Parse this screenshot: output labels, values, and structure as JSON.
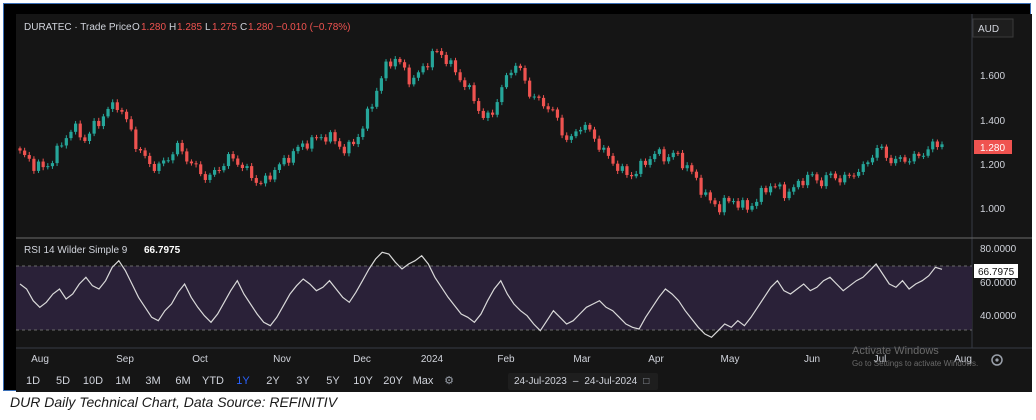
{
  "header": {
    "symbol": "DURATEC · Trade Price",
    "o_label": "O",
    "o_value": "1.280",
    "h_label": "H",
    "h_value": "1.285",
    "l_label": "L",
    "l_value": "1.275",
    "c_label": "C",
    "c_value": "1.280",
    "change": "−0.010 (−0.78%)",
    "currency": "AUD"
  },
  "price_axis": {
    "ticks": [
      "1.600",
      "1.400",
      "1.200",
      "1.000"
    ],
    "last_price": "1.280"
  },
  "rsi": {
    "label": "RSI 14 Wilder Simple 9",
    "value": "66.7975",
    "ticks": [
      "80.0000",
      "60.0000",
      "40.0000"
    ]
  },
  "time_axis": [
    "Aug",
    "Sep",
    "Oct",
    "Nov",
    "Dec",
    "2024",
    "Feb",
    "Mar",
    "Apr",
    "May",
    "Jun",
    "Jul",
    "Aug"
  ],
  "toolbar": {
    "timeframes": [
      "1D",
      "5D",
      "10D",
      "1M",
      "3M",
      "6M",
      "YTD",
      "1Y",
      "2Y",
      "3Y",
      "5Y",
      "10Y",
      "20Y",
      "Max"
    ],
    "active": "1Y",
    "date_from": "24-Jul-2023",
    "date_sep": "–",
    "date_to": "24-Jul-2024"
  },
  "watermark": {
    "line1": "Activate Windows",
    "line2": "Go to Settings to activate Windows."
  },
  "caption": "DUR Daily Technical Chart, Data Source: REFINITIV",
  "colors": {
    "up": "#26a69a",
    "down": "#ef5350",
    "rsi_line": "#d9d9d9",
    "rsi_band": "#2a2138",
    "background": "#151515"
  },
  "chart_data": [
    {
      "type": "candlestick",
      "title": "DURATEC · Trade Price",
      "ylim": [
        0.93,
        1.75
      ],
      "y_ticks": [
        1.0,
        1.2,
        1.4,
        1.6
      ],
      "x_labels": [
        "Aug",
        "Sep",
        "Oct",
        "Nov",
        "Dec",
        "2024",
        "Feb",
        "Mar",
        "Apr",
        "May",
        "Jun",
        "Jul",
        "Aug"
      ],
      "close_path": [
        1.24,
        1.22,
        1.19,
        1.18,
        1.17,
        1.22,
        1.26,
        1.31,
        1.36,
        1.33,
        1.3,
        1.35,
        1.38,
        1.42,
        1.45,
        1.46,
        1.4,
        1.34,
        1.26,
        1.22,
        1.19,
        1.17,
        1.2,
        1.23,
        1.27,
        1.24,
        1.2,
        1.17,
        1.14,
        1.13,
        1.16,
        1.19,
        1.22,
        1.21,
        1.18,
        1.15,
        1.12,
        1.1,
        1.13,
        1.17,
        1.19,
        1.22,
        1.25,
        1.27,
        1.29,
        1.3,
        1.31,
        1.32,
        1.3,
        1.27,
        1.25,
        1.29,
        1.33,
        1.4,
        1.48,
        1.56,
        1.63,
        1.67,
        1.65,
        1.6,
        1.56,
        1.6,
        1.64,
        1.68,
        1.7,
        1.67,
        1.63,
        1.59,
        1.55,
        1.51,
        1.45,
        1.39,
        1.41,
        1.48,
        1.55,
        1.62,
        1.64,
        1.58,
        1.51,
        1.48,
        1.46,
        1.45,
        1.4,
        1.33,
        1.29,
        1.33,
        1.38,
        1.34,
        1.3,
        1.26,
        1.22,
        1.19,
        1.16,
        1.14,
        1.15,
        1.18,
        1.21,
        1.24,
        1.23,
        1.22,
        1.24,
        1.21,
        1.18,
        1.14,
        1.09,
        1.04,
        1.01,
        1.0,
        1.02,
        1.03,
        1.01,
        0.99,
        1.01,
        1.04,
        1.08,
        1.1,
        1.08,
        1.06,
        1.07,
        1.1,
        1.13,
        1.14,
        1.11,
        1.12,
        1.14,
        1.13,
        1.12,
        1.14,
        1.16,
        1.17,
        1.22,
        1.26,
        1.25,
        1.21,
        1.2,
        1.22,
        1.21,
        1.22,
        1.24,
        1.26,
        1.28,
        1.28
      ],
      "last_close": 1.28
    },
    {
      "type": "line",
      "title": "RSI 14 Wilder Simple 9",
      "ylim": [
        22,
        82
      ],
      "y_ticks": [
        40,
        60,
        80
      ],
      "band": [
        30,
        70
      ],
      "series": [
        {
          "name": "RSI 14 Wilder Simple 9",
          "values": [
            58,
            55,
            48,
            44,
            47,
            52,
            55,
            49,
            52,
            58,
            62,
            57,
            55,
            60,
            68,
            72,
            66,
            58,
            50,
            44,
            38,
            36,
            42,
            46,
            53,
            58,
            50,
            44,
            39,
            35,
            40,
            47,
            54,
            60,
            52,
            46,
            40,
            35,
            33,
            38,
            45,
            52,
            57,
            61,
            58,
            54,
            56,
            60,
            55,
            50,
            47,
            53,
            60,
            67,
            73,
            77,
            76,
            71,
            67,
            70,
            72,
            75,
            70,
            62,
            56,
            50,
            45,
            40,
            38,
            35,
            40,
            48,
            55,
            60,
            52,
            46,
            42,
            39,
            34,
            30,
            36,
            42,
            38,
            34,
            36,
            40,
            44,
            46,
            48,
            44,
            42,
            38,
            34,
            32,
            31,
            38,
            44,
            50,
            55,
            52,
            48,
            42,
            37,
            32,
            28,
            26,
            30,
            34,
            32,
            36,
            33,
            38,
            44,
            50,
            56,
            60,
            54,
            52,
            55,
            58,
            54,
            56,
            60,
            62,
            58,
            54,
            57,
            60,
            62,
            66,
            70,
            64,
            58,
            56,
            60,
            55,
            58,
            60,
            63,
            68,
            66.8
          ]
        }
      ],
      "last_value": 66.7975
    }
  ]
}
